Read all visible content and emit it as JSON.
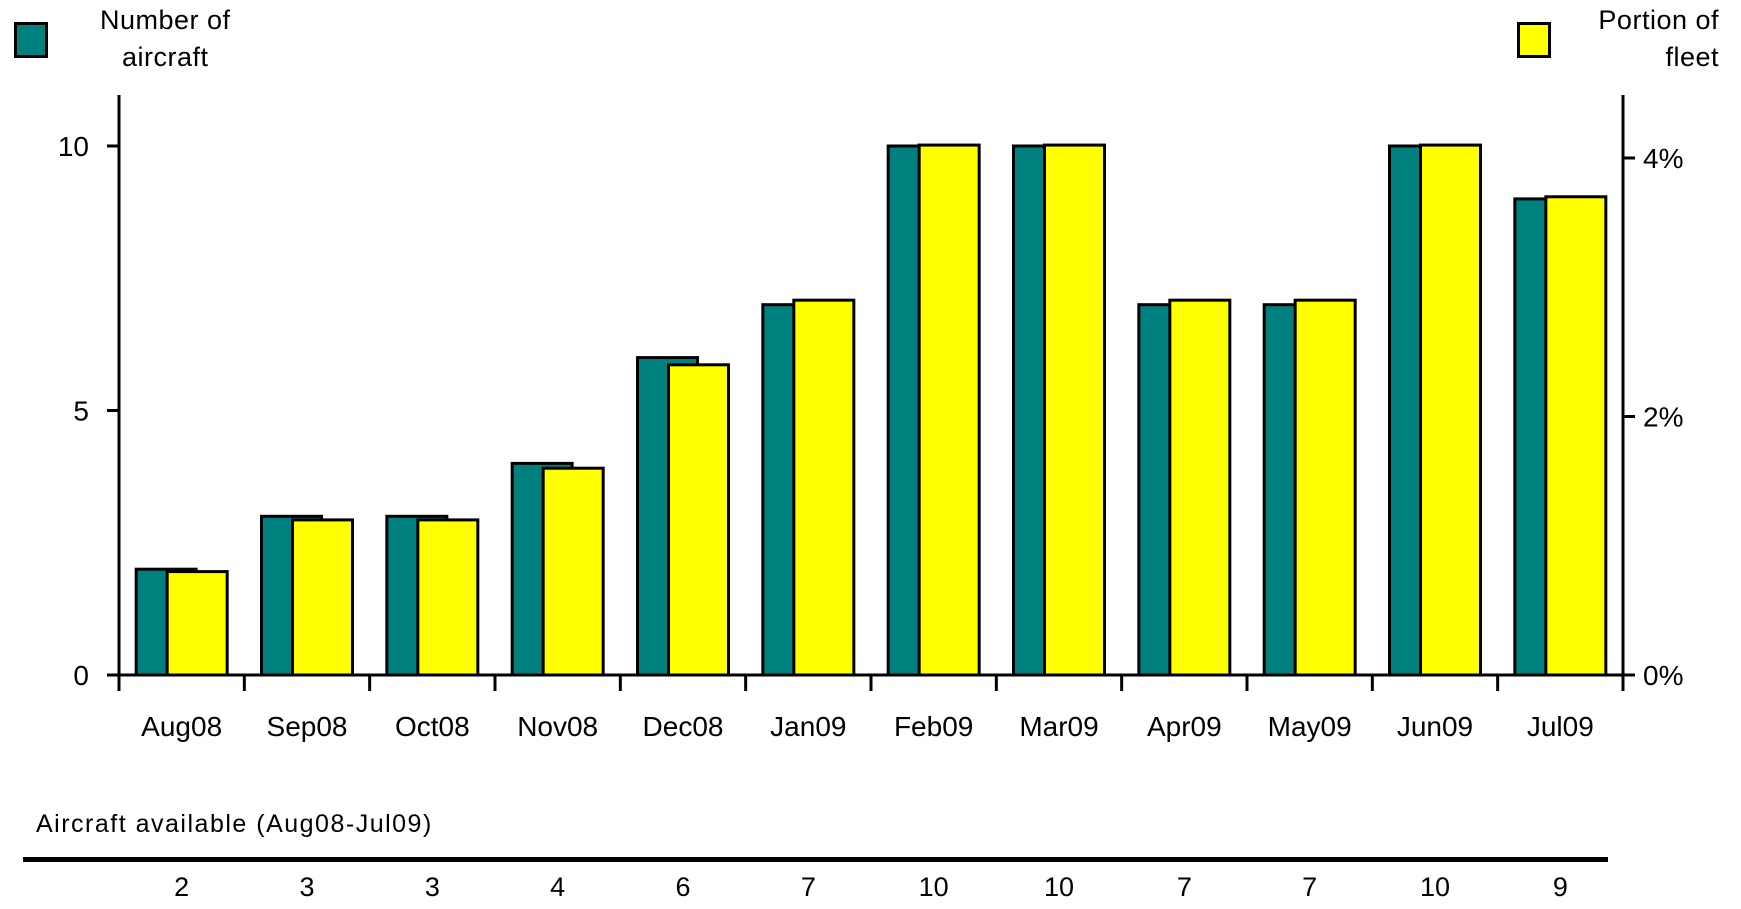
{
  "legend": {
    "left_label_line1": "Number of",
    "left_label_line2": "aircraft",
    "right_label_line1": "Portion of",
    "right_label_line2": "fleet"
  },
  "colors": {
    "aircraft": "#00807f",
    "portion": "#ffff00",
    "stroke": "#000000"
  },
  "chart_data": {
    "type": "bar",
    "categories": [
      "Aug08",
      "Sep08",
      "Oct08",
      "Nov08",
      "Dec08",
      "Jan09",
      "Feb09",
      "Mar09",
      "Apr09",
      "May09",
      "Jun09",
      "Jul09"
    ],
    "series": [
      {
        "name": "Number of aircraft",
        "axis": "left",
        "values": [
          2,
          3,
          3,
          4,
          6,
          7,
          10,
          10,
          7,
          7,
          10,
          9
        ]
      },
      {
        "name": "Portion of fleet",
        "axis": "right",
        "unit": "%",
        "values": [
          0.8,
          1.2,
          1.2,
          1.6,
          2.4,
          2.9,
          4.1,
          4.1,
          2.9,
          2.9,
          4.1,
          3.7
        ]
      }
    ],
    "left_axis": {
      "ticks": [
        0,
        5,
        10
      ],
      "tick_labels": [
        "0",
        "5",
        "10"
      ],
      "ylim": [
        0,
        10
      ]
    },
    "right_axis": {
      "ticks": [
        0,
        2,
        4
      ],
      "tick_labels": [
        "0%",
        "2%",
        "4%"
      ],
      "ylim": [
        0,
        4.1
      ]
    },
    "grid": false,
    "legend_placement": "top"
  },
  "table": {
    "title": "Aircraft available (Aug08-Jul09)",
    "values": [
      "2",
      "3",
      "3",
      "4",
      "6",
      "7",
      "10",
      "10",
      "7",
      "7",
      "10",
      "9"
    ]
  }
}
